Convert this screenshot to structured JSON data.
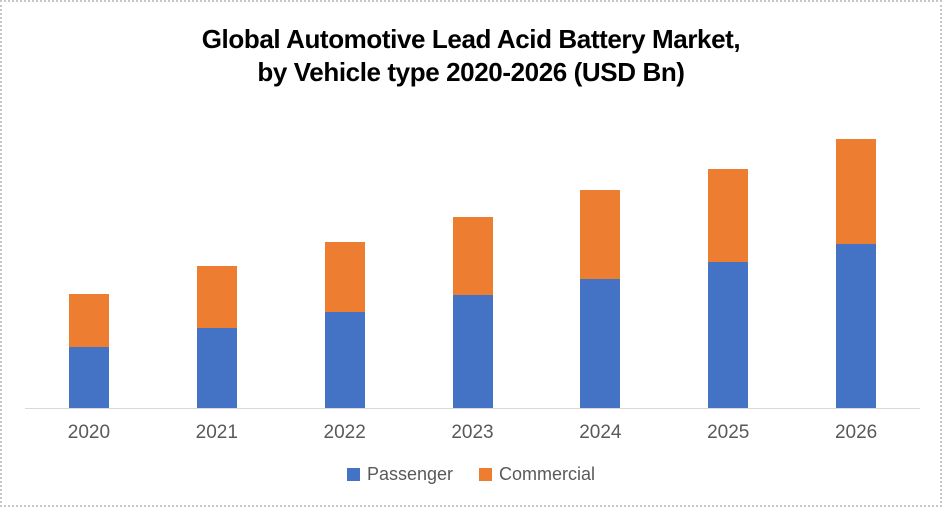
{
  "chart_data": {
    "type": "bar",
    "stacked": true,
    "title": "Global Automotive Lead Acid Battery Market, by Vehicle type 2020-2026 (USD Bn)",
    "title_line1": "Global Automotive Lead Acid Battery Market,",
    "title_line2": "by Vehicle type 2020-2026 (USD Bn)",
    "categories": [
      "2020",
      "2021",
      "2022",
      "2023",
      "2024",
      "2025",
      "2026"
    ],
    "series": [
      {
        "name": "Passenger",
        "color": "#4472C4",
        "values": [
          20.8,
          27.1,
          32.7,
          38.3,
          44.0,
          49.8,
          55.7
        ]
      },
      {
        "name": "Commercial",
        "color": "#ED7D31",
        "values": [
          18.1,
          21.1,
          23.9,
          26.8,
          30.2,
          31.5,
          35.8
        ]
      }
    ],
    "stack_totals": [
      38.9,
      48.2,
      56.6,
      65.1,
      74.2,
      81.3,
      91.5
    ],
    "xlabel": "",
    "ylabel": "",
    "ylim": [
      0,
      100
    ],
    "y_axis_visible": false,
    "gridlines": false,
    "legend_position": "bottom"
  },
  "colors": {
    "passenger": "#4472C4",
    "commercial": "#ED7D31",
    "axis_line": "#D9D9D9",
    "axis_text": "#595959",
    "title_text": "#000000",
    "frame_border": "#C6C6C6"
  }
}
